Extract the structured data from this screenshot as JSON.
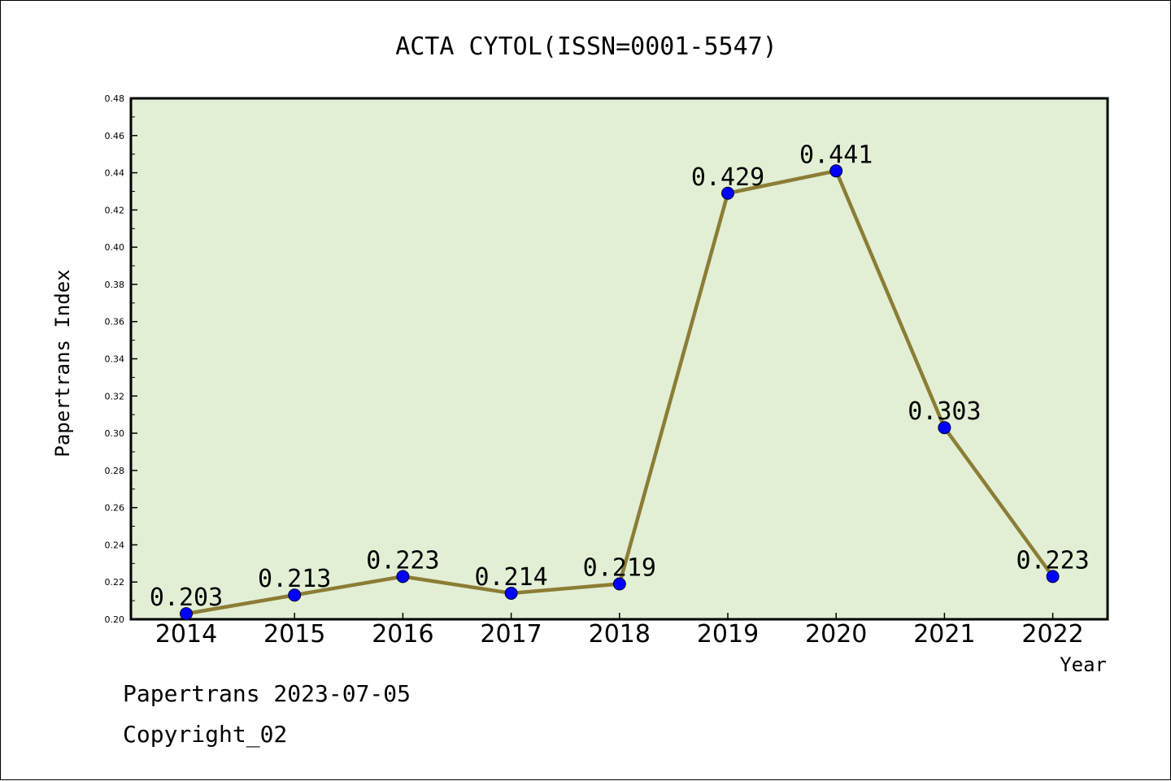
{
  "chart_data": {
    "type": "line",
    "title": "ACTA CYTOL(ISSN=0001-5547)",
    "xlabel": "Year",
    "ylabel": "Papertrans Index",
    "categories": [
      "2014",
      "2015",
      "2016",
      "2017",
      "2018",
      "2019",
      "2020",
      "2021",
      "2022"
    ],
    "series": [
      {
        "values": [
          0.203,
          0.213,
          0.223,
          0.214,
          0.219,
          0.429,
          0.441,
          0.303,
          0.223
        ],
        "labels": [
          "0.203",
          "0.213",
          "0.223",
          "0.214",
          "0.219",
          "0.429",
          "0.441",
          "0.303",
          "0.223"
        ]
      }
    ],
    "ylim": [
      0.2,
      0.48
    ],
    "yticks": [
      "0.20",
      "0.22",
      "0.24",
      "0.26",
      "0.28",
      "0.30",
      "0.32",
      "0.34",
      "0.36",
      "0.38",
      "0.40",
      "0.42",
      "0.44",
      "0.46",
      "0.48"
    ],
    "grid": false,
    "colors": {
      "plot_background": "#e2efd5",
      "line": "#8b7d35",
      "marker": "#0000ff"
    }
  },
  "footer": {
    "line1": "Papertrans 2023-07-05",
    "line2": "Copyright_02"
  }
}
